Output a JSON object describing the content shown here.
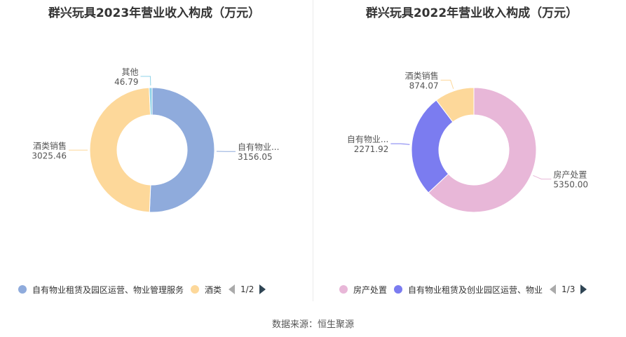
{
  "chart_data": [
    {
      "type": "pie",
      "title": "群兴玩具2023年营业收入构成（万元）",
      "series": [
        {
          "name": "自有物业租赁及园区运营、物业管理服务",
          "label": "自有物业...",
          "value": 3156.05,
          "value_label": "3156.05",
          "color": "#8fabdc"
        },
        {
          "name": "酒类",
          "label": "酒类销售",
          "value": 3025.46,
          "value_label": "3025.46",
          "color": "#fdd89a"
        },
        {
          "name": "其他",
          "label": "其他",
          "value": 46.79,
          "value_label": "46.79",
          "color": "#8fd3e8"
        }
      ],
      "legend": {
        "items": [
          {
            "name": "自有物业租赁及园区运营、物业管理服务",
            "color": "#8fabdc"
          },
          {
            "name": "酒类",
            "color": "#fdd89a"
          }
        ],
        "page": "1/2",
        "placement": "bottom"
      }
    },
    {
      "type": "pie",
      "title": "群兴玩具2022年营业收入构成（万元）",
      "series": [
        {
          "name": "房产处置",
          "label": "房产处置",
          "value": 5350.0,
          "value_label": "5350.00",
          "color": "#e8b7d8"
        },
        {
          "name": "自有物业租赁及创业园区运营、物业",
          "label": "自有物业...",
          "value": 2271.92,
          "value_label": "2271.92",
          "color": "#7b7cf0"
        },
        {
          "name": "酒类销售",
          "label": "酒类销售",
          "value": 874.07,
          "value_label": "874.07",
          "color": "#fdd89a"
        }
      ],
      "legend": {
        "items": [
          {
            "name": "房产处置",
            "color": "#e8b7d8"
          },
          {
            "name": "自有物业租赁及创业园区运营、物业",
            "color": "#7b7cf0"
          }
        ],
        "page": "1/3",
        "placement": "bottom"
      }
    }
  ],
  "footer": {
    "source": "数据来源：恒生聚源"
  }
}
